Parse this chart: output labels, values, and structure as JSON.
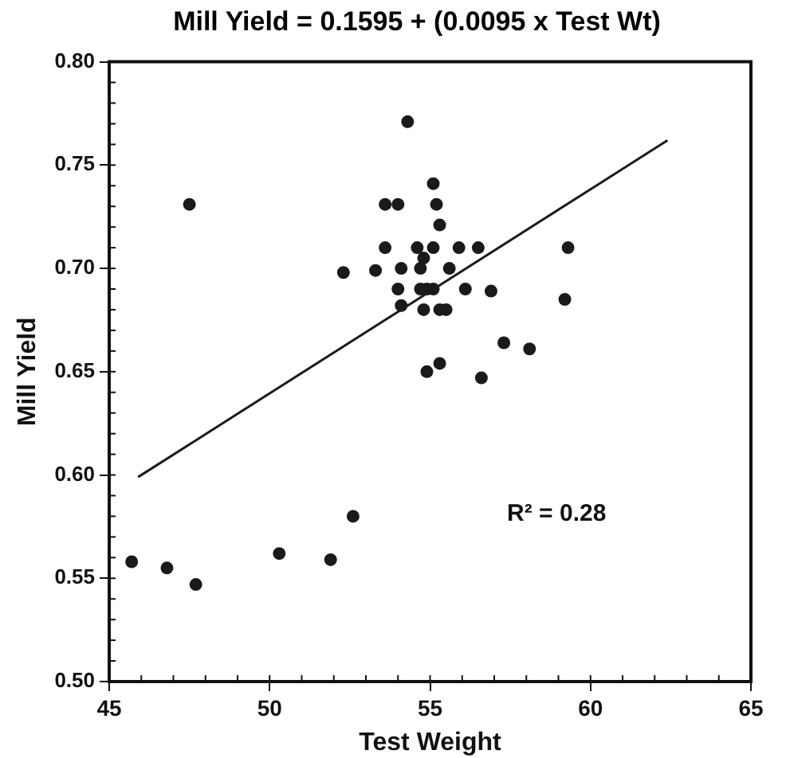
{
  "chart_data": {
    "type": "scatter",
    "title": "Mill Yield = 0.1595 + (0.0095 x Test Wt)",
    "xlabel": "Test Weight",
    "ylabel": "Mill Yield",
    "annotations": [
      "R² = 0.28"
    ],
    "xlim": [
      45,
      65
    ],
    "xticks": [
      45,
      50,
      55,
      60,
      65
    ],
    "ylim": [
      0.5,
      0.8
    ],
    "yticks": [
      {
        "value": 0.5,
        "label": "0.50"
      },
      {
        "value": 0.55,
        "label": "0.55"
      },
      {
        "value": 0.6,
        "label": "0.60"
      },
      {
        "value": 0.65,
        "label": "0.65"
      },
      {
        "value": 0.7,
        "label": "0.70"
      },
      {
        "value": 0.75,
        "label": "0.75"
      },
      {
        "value": 0.8,
        "label": "0.80"
      }
    ],
    "grid": false,
    "legend": false,
    "marker": "circle",
    "series": [
      {
        "color": "#1a1a1a",
        "x": [
          54.3,
          47.5,
          55.1,
          53.6,
          54.0,
          55.2,
          55.3,
          53.6,
          54.6,
          55.1,
          54.8,
          55.9,
          56.5,
          59.3,
          52.3,
          53.3,
          54.1,
          54.7,
          55.6,
          54.0,
          54.7,
          54.9,
          55.1,
          56.1,
          56.9,
          54.1,
          54.8,
          55.3,
          55.5,
          59.2,
          54.9,
          55.3,
          56.6,
          57.3,
          58.1,
          45.7,
          46.8,
          47.7,
          50.3,
          51.9,
          52.6
        ],
        "values": [
          0.771,
          0.731,
          0.741,
          0.731,
          0.731,
          0.731,
          0.721,
          0.71,
          0.71,
          0.71,
          0.705,
          0.71,
          0.71,
          0.71,
          0.698,
          0.699,
          0.7,
          0.7,
          0.7,
          0.69,
          0.69,
          0.69,
          0.69,
          0.69,
          0.689,
          0.682,
          0.68,
          0.68,
          0.68,
          0.685,
          0.65,
          0.654,
          0.647,
          0.664,
          0.661,
          0.558,
          0.555,
          0.547,
          0.562,
          0.559,
          0.58
        ]
      },
      {
        "type": "line",
        "color": "#1a1a1a",
        "line_style": "solid",
        "marker": "none",
        "x": [
          45.9,
          62.4
        ],
        "values": [
          0.599,
          0.762
        ]
      }
    ]
  }
}
